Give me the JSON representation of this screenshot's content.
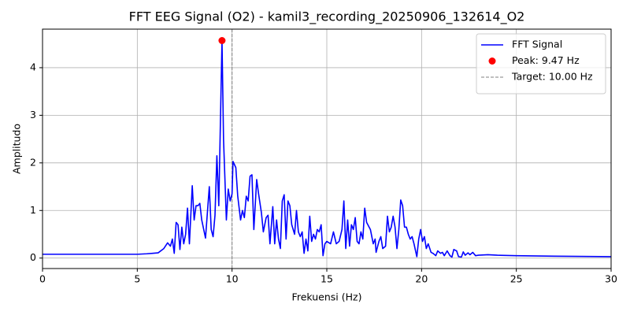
{
  "chart_data": {
    "type": "line",
    "title": "FFT EEG Signal (O2) - kamil3_recording_20250906_132614_O2",
    "xlabel": "Frekuensi (Hz)",
    "ylabel": "Amplitudo",
    "xlim": [
      0,
      30
    ],
    "ylim": [
      -0.22,
      4.81
    ],
    "xticks": [
      0,
      5,
      10,
      15,
      20,
      25,
      30
    ],
    "yticks": [
      0,
      1,
      2,
      3,
      4
    ],
    "grid": true,
    "legend": "upper right",
    "series": [
      {
        "name": "FFT Signal",
        "color": "#0000ff",
        "style": "line",
        "x": [
          0,
          5,
          5.5,
          5.8,
          6.1,
          6.4,
          6.6,
          6.75,
          6.85,
          6.95,
          7.05,
          7.15,
          7.25,
          7.35,
          7.45,
          7.55,
          7.65,
          7.75,
          7.9,
          8.0,
          8.1,
          8.2,
          8.3,
          8.4,
          8.6,
          8.8,
          8.9,
          9.0,
          9.1,
          9.2,
          9.3,
          9.47,
          9.55,
          9.7,
          9.8,
          9.9,
          10.0,
          10.05,
          10.2,
          10.3,
          10.45,
          10.55,
          10.65,
          10.75,
          10.85,
          10.95,
          11.05,
          11.15,
          11.3,
          11.4,
          11.55,
          11.65,
          11.8,
          11.9,
          12.0,
          12.15,
          12.25,
          12.35,
          12.45,
          12.55,
          12.65,
          12.75,
          12.85,
          12.95,
          13.05,
          13.15,
          13.3,
          13.4,
          13.5,
          13.6,
          13.7,
          13.8,
          13.9,
          14.0,
          14.1,
          14.2,
          14.3,
          14.4,
          14.5,
          14.6,
          14.7,
          14.8,
          14.9,
          15.0,
          15.2,
          15.35,
          15.5,
          15.65,
          15.8,
          15.9,
          16.0,
          16.1,
          16.2,
          16.3,
          16.4,
          16.5,
          16.6,
          16.7,
          16.8,
          16.9,
          17.0,
          17.1,
          17.3,
          17.45,
          17.55,
          17.6,
          17.75,
          17.85,
          17.95,
          18.1,
          18.2,
          18.3,
          18.4,
          18.5,
          18.6,
          18.7,
          18.8,
          18.9,
          19.0,
          19.1,
          19.2,
          19.3,
          19.4,
          19.5,
          19.6,
          19.75,
          19.85,
          19.95,
          20.05,
          20.15,
          20.25,
          20.35,
          20.5,
          20.6,
          20.75,
          20.85,
          21.0,
          21.1,
          21.2,
          21.35,
          21.5,
          21.6,
          21.7,
          21.85,
          21.95,
          22.1,
          22.2,
          22.3,
          22.45,
          22.55,
          22.7,
          22.85,
          23.0,
          23.5,
          24,
          25,
          27,
          30
        ],
        "values": [
          0.08,
          0.08,
          0.09,
          0.1,
          0.11,
          0.2,
          0.32,
          0.25,
          0.4,
          0.1,
          0.75,
          0.7,
          0.18,
          0.65,
          0.3,
          0.5,
          1.05,
          0.3,
          1.52,
          0.8,
          1.1,
          1.1,
          1.15,
          0.8,
          0.42,
          1.5,
          0.6,
          0.45,
          0.9,
          2.15,
          1.1,
          4.57,
          2.5,
          0.8,
          1.45,
          1.2,
          1.35,
          2.03,
          1.9,
          1.3,
          0.8,
          1.0,
          0.85,
          1.3,
          1.2,
          1.72,
          1.75,
          0.6,
          1.65,
          1.35,
          0.95,
          0.55,
          0.85,
          0.9,
          0.3,
          1.08,
          0.3,
          0.8,
          0.4,
          0.2,
          1.2,
          1.33,
          0.4,
          1.2,
          1.1,
          0.7,
          0.5,
          1.0,
          0.55,
          0.45,
          0.55,
          0.1,
          0.4,
          0.15,
          0.88,
          0.35,
          0.5,
          0.4,
          0.6,
          0.55,
          0.7,
          0.05,
          0.3,
          0.35,
          0.3,
          0.55,
          0.3,
          0.35,
          0.6,
          1.2,
          0.2,
          0.8,
          0.25,
          0.7,
          0.6,
          0.85,
          0.35,
          0.3,
          0.55,
          0.4,
          1.05,
          0.75,
          0.6,
          0.3,
          0.4,
          0.12,
          0.35,
          0.45,
          0.2,
          0.25,
          0.88,
          0.55,
          0.65,
          0.88,
          0.65,
          0.2,
          0.6,
          1.22,
          1.1,
          0.65,
          0.65,
          0.5,
          0.4,
          0.45,
          0.3,
          0.03,
          0.4,
          0.6,
          0.35,
          0.45,
          0.2,
          0.3,
          0.12,
          0.1,
          0.05,
          0.15,
          0.1,
          0.12,
          0.05,
          0.15,
          0.05,
          0.02,
          0.18,
          0.15,
          0.03,
          0.02,
          0.13,
          0.06,
          0.11,
          0.07,
          0.12,
          0.05,
          0.06,
          0.07,
          0.06,
          0.05,
          0.04,
          0.03
        ]
      },
      {
        "name": "Peak: 9.47 Hz",
        "color": "#ff0000",
        "style": "marker",
        "x": [
          9.47
        ],
        "values": [
          4.57
        ]
      }
    ],
    "vlines": [
      {
        "name": "Target: 10.00 Hz",
        "color": "#808080",
        "x": 10
      }
    ]
  }
}
